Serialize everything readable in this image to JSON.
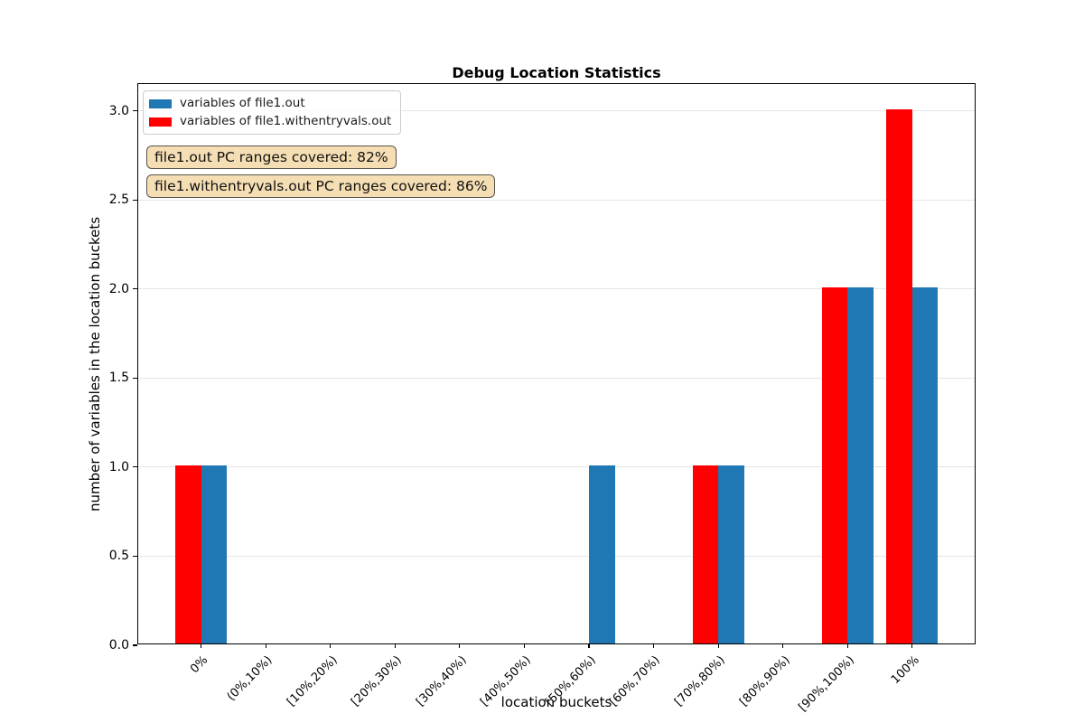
{
  "title": "Debug Location Statistics",
  "chart_data": {
    "type": "bar",
    "title": "Debug Location Statistics",
    "xlabel": "location buckets",
    "ylabel": "number of variables in the location buckets",
    "categories": [
      "0%",
      "(0%,10%)",
      "[10%,20%)",
      "[20%,30%)",
      "[30%,40%)",
      "[40%,50%)",
      "[50%,60%)",
      "[60%,70%)",
      "[70%,80%)",
      "[80%,90%)",
      "[90%,100%)",
      "100%"
    ],
    "series": [
      {
        "name": "variables of file1.out",
        "color": "#1f77b4",
        "values": [
          1,
          0,
          0,
          0,
          0,
          0,
          1,
          0,
          1,
          0,
          2,
          2
        ]
      },
      {
        "name": "variables of file1.withentryvals.out",
        "color": "#ff0000",
        "values": [
          1,
          0,
          0,
          0,
          0,
          0,
          0,
          0,
          1,
          0,
          2,
          3
        ]
      }
    ],
    "yticks": [
      "0.0",
      "0.5",
      "1.0",
      "1.5",
      "2.0",
      "2.5",
      "3.0"
    ],
    "ylim": [
      0,
      3.15
    ],
    "grid": "horizontal",
    "legend_position": "upper-left"
  },
  "annotations": [
    {
      "text": "file1.out PC ranges covered: 82%"
    },
    {
      "text": "file1.withentryvals.out PC ranges covered: 86%"
    }
  ],
  "colors": {
    "blue_series": "#1f77b4",
    "red_series": "#ff0000",
    "grid": "#e5e5e5",
    "annotation_bg": "#f5deb3",
    "annotation_border": "#57534a"
  }
}
